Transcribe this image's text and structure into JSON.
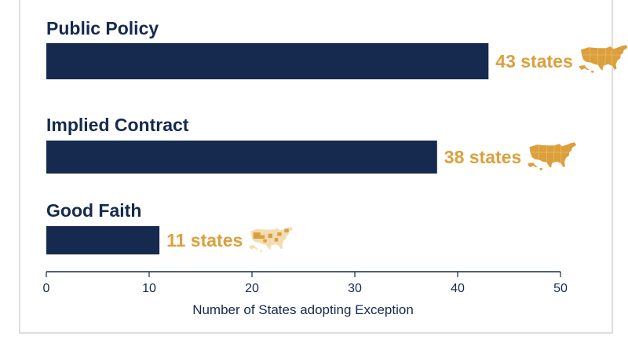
{
  "colors": {
    "bar": "#152a4e",
    "label": "#152a4e",
    "value": "#dba03d",
    "map_fill": "#dba03d",
    "map_light": "#f3dcb2",
    "axis": "#152a4e",
    "frame": "#c9c9c9"
  },
  "chart_data": {
    "type": "bar",
    "orientation": "horizontal",
    "categories": [
      "Public Policy",
      "Implied Contract",
      "Good Faith"
    ],
    "values": [
      43,
      38,
      11
    ],
    "value_labels": [
      "43 states",
      "38 states",
      "11 states"
    ],
    "icons": [
      "us-map-icon",
      "us-map-icon",
      "us-map-partial-icon"
    ],
    "xlabel": "Number of States adopting Exception",
    "xlim": [
      0,
      50
    ],
    "xticks": [
      0,
      10,
      20,
      30,
      40,
      50
    ],
    "grid": false,
    "legend": "none"
  }
}
